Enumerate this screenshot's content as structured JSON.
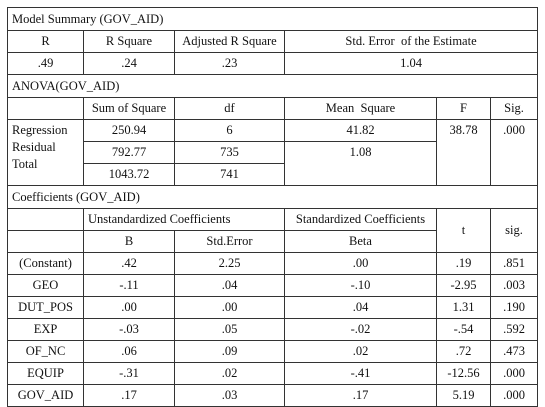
{
  "model_summary": {
    "title": "Model Summary (GOV_AID)",
    "headers": [
      "R",
      "R Square",
      "Adjusted R Square",
      "Std. Error  of the Estimate"
    ],
    "values": [
      ".49",
      ".24",
      ".23",
      "1.04"
    ]
  },
  "anova": {
    "title": "ANOVA(GOV_AID)",
    "headers": [
      "Sum of Square",
      "df",
      "Mean  Square",
      "F",
      "Sig."
    ],
    "row_labels": [
      "Regression",
      "Residual",
      "Total"
    ],
    "sum_of_squares": [
      "250.94",
      "792.77",
      "1043.72"
    ],
    "df": [
      "6",
      "735",
      "741"
    ],
    "mean_square": [
      "41.82",
      "1.08"
    ],
    "f": "38.78",
    "sig": ".000"
  },
  "coefficients": {
    "title": "Coefficients (GOV_AID)",
    "group_headers": [
      "Unstandardized Coefficients",
      "Standardized Coefficients"
    ],
    "headers": [
      "B",
      "Std.Error",
      "Beta",
      "t",
      "sig."
    ],
    "rows": [
      [
        "(Constant)",
        ".42",
        "2.25",
        ".00",
        ".19",
        ".851"
      ],
      [
        "GEO",
        "-.11",
        ".04",
        "-.10",
        "-2.95",
        ".003"
      ],
      [
        "DUT_POS",
        ".00",
        ".00",
        ".04",
        "1.31",
        ".190"
      ],
      [
        "EXP",
        "-.03",
        ".05",
        "-.02",
        "-.54",
        ".592"
      ],
      [
        "OF_NC",
        ".06",
        ".09",
        ".02",
        ".72",
        ".473"
      ],
      [
        "EQUIP",
        "-.31",
        ".02",
        "-.41",
        "-12.56",
        ".000"
      ],
      [
        "GOV_AID",
        ".17",
        ".03",
        ".17",
        "5.19",
        ".000"
      ]
    ]
  }
}
